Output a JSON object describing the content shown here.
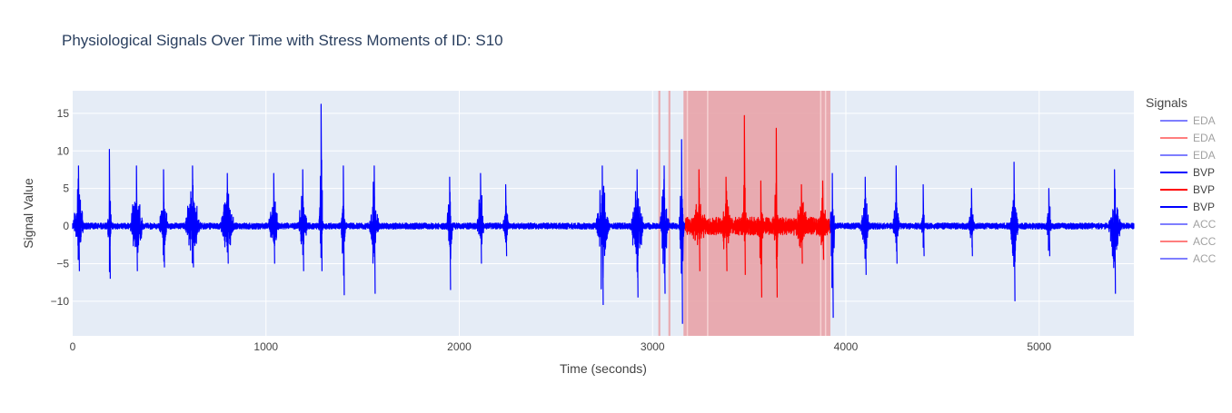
{
  "chart_data": {
    "type": "line",
    "title": "Physiological Signals Over Time with Stress Moments of ID: S10",
    "xlabel": "Time (seconds)",
    "ylabel": "Signal Value",
    "xlim": [
      0,
      5490
    ],
    "ylim": [
      -14.6,
      18.0
    ],
    "x_ticks": [
      0,
      1000,
      2000,
      3000,
      4000,
      5000
    ],
    "x_tick_labels": [
      "0",
      "1000",
      "2000",
      "3000",
      "4000",
      "5000"
    ],
    "y_ticks": [
      -10,
      -5,
      0,
      5,
      10,
      15
    ],
    "y_tick_labels": [
      "−10",
      "−5",
      "0",
      "5",
      "10",
      "15"
    ],
    "grid": true,
    "legend": {
      "title": "Signals",
      "placement": "right",
      "entries": [
        {
          "label": "EDA",
          "color": "#0000ff",
          "dimmed": true
        },
        {
          "label": "EDA",
          "color": "#ff0000",
          "dimmed": true
        },
        {
          "label": "EDA",
          "color": "#0000ff",
          "dimmed": true
        },
        {
          "label": "BVP",
          "color": "#0000ff",
          "dimmed": false
        },
        {
          "label": "BVP",
          "color": "#ff0000",
          "dimmed": false
        },
        {
          "label": "BVP",
          "color": "#0000ff",
          "dimmed": false
        },
        {
          "label": "ACC",
          "color": "#0000ff",
          "dimmed": true
        },
        {
          "label": "ACC",
          "color": "#ff0000",
          "dimmed": true
        },
        {
          "label": "ACC",
          "color": "#0000ff",
          "dimmed": true
        }
      ]
    },
    "stress_regions": [
      {
        "start": 3030,
        "end": 3040
      },
      {
        "start": 3082,
        "end": 3092
      },
      {
        "start": 3160,
        "end": 3920
      }
    ],
    "stress_region_color": "#e8a3a8",
    "series": [
      {
        "name": "BVP",
        "color": "#0000ff",
        "x_range": [
          0,
          3170
        ],
        "baseline_amplitude": 0.4,
        "bursts": [
          {
            "center": 30,
            "width": 70,
            "max": 8.0,
            "min": -6.0
          },
          {
            "center": 190,
            "width": 25,
            "max": 10.2,
            "min": -7.0
          },
          {
            "center": 330,
            "width": 90,
            "max": 8.0,
            "min": -6.0
          },
          {
            "center": 470,
            "width": 60,
            "max": 7.5,
            "min": -5.5
          },
          {
            "center": 620,
            "width": 100,
            "max": 8.0,
            "min": -5.5
          },
          {
            "center": 800,
            "width": 90,
            "max": 7.0,
            "min": -5.0
          },
          {
            "center": 1040,
            "width": 70,
            "max": 7.0,
            "min": -5.0
          },
          {
            "center": 1190,
            "width": 60,
            "max": 7.5,
            "min": -6.0
          },
          {
            "center": 1285,
            "width": 30,
            "max": 16.2,
            "min": -6.0
          },
          {
            "center": 1400,
            "width": 30,
            "max": 8.0,
            "min": -9.2
          },
          {
            "center": 1560,
            "width": 60,
            "max": 8.0,
            "min": -9.0
          },
          {
            "center": 1950,
            "width": 40,
            "max": 6.5,
            "min": -8.5
          },
          {
            "center": 2110,
            "width": 50,
            "max": 7.0,
            "min": -5.0
          },
          {
            "center": 2240,
            "width": 40,
            "max": 5.5,
            "min": -4.0
          },
          {
            "center": 2740,
            "width": 90,
            "max": 8.0,
            "min": -10.5
          },
          {
            "center": 2920,
            "width": 80,
            "max": 7.5,
            "min": -9.5
          },
          {
            "center": 3060,
            "width": 60,
            "max": 8.0,
            "min": -9.0
          },
          {
            "center": 3150,
            "width": 30,
            "max": 11.5,
            "min": -13.0
          }
        ]
      },
      {
        "name": "BVP",
        "color": "#ff0000",
        "x_range": [
          3170,
          3920
        ],
        "baseline_amplitude": 1.2,
        "bursts": [
          {
            "center": 3240,
            "width": 100,
            "max": 7.5,
            "min": -6.0
          },
          {
            "center": 3380,
            "width": 80,
            "max": 6.5,
            "min": -6.0
          },
          {
            "center": 3475,
            "width": 30,
            "max": 14.7,
            "min": -6.5
          },
          {
            "center": 3560,
            "width": 40,
            "max": 6.0,
            "min": -9.5
          },
          {
            "center": 3640,
            "width": 30,
            "max": 13.0,
            "min": -9.5
          },
          {
            "center": 3770,
            "width": 90,
            "max": 5.5,
            "min": -5.0
          },
          {
            "center": 3880,
            "width": 60,
            "max": 6.0,
            "min": -4.5
          }
        ]
      },
      {
        "name": "BVP",
        "color": "#0000ff",
        "x_range": [
          3920,
          5490
        ],
        "baseline_amplitude": 0.4,
        "bursts": [
          {
            "center": 3930,
            "width": 30,
            "max": 7.0,
            "min": -12.2
          },
          {
            "center": 4100,
            "width": 60,
            "max": 6.5,
            "min": -6.5
          },
          {
            "center": 4260,
            "width": 40,
            "max": 8.0,
            "min": -5.0
          },
          {
            "center": 4400,
            "width": 20,
            "max": 5.5,
            "min": -4.0
          },
          {
            "center": 4650,
            "width": 40,
            "max": 5.0,
            "min": -4.0
          },
          {
            "center": 4870,
            "width": 50,
            "max": 8.5,
            "min": -10.0
          },
          {
            "center": 5050,
            "width": 40,
            "max": 5.0,
            "min": -4.0
          },
          {
            "center": 5390,
            "width": 80,
            "max": 7.5,
            "min": -9.0
          }
        ]
      }
    ]
  }
}
